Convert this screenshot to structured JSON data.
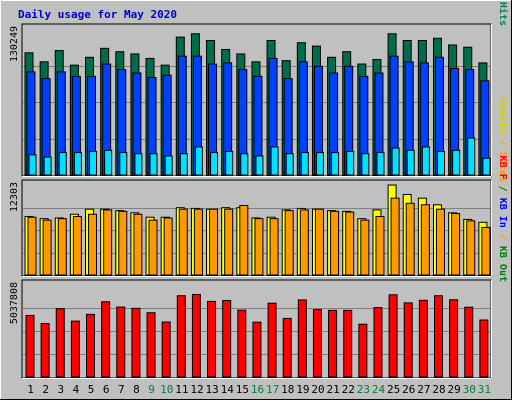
{
  "title": "Daily usage for May 2020",
  "colors": {
    "background": "#c0c0c0",
    "hits": "#006c4c",
    "files": "#0040ff",
    "pages": "#00e0ff",
    "visits": "#ffff00",
    "sites": "#ff9900",
    "kbin": "#ff0000",
    "weekday_label": "#000000",
    "weekend_label": "#008040"
  },
  "chart_data": [
    {
      "type": "bar",
      "panel": "requests",
      "y_max_label": "130249",
      "side_labels": [
        {
          "text": "Pages",
          "color": "#00c0e0"
        },
        {
          "text": " / ",
          "color": "#0040ff"
        },
        {
          "text": "Files",
          "color": "#0040ff"
        },
        {
          "text": " / ",
          "color": "#0040ff"
        },
        {
          "text": "Hits",
          "color": "#008060"
        }
      ],
      "categories": [
        "1",
        "2",
        "3",
        "4",
        "5",
        "6",
        "7",
        "8",
        "9",
        "10",
        "11",
        "12",
        "13",
        "14",
        "15",
        "16",
        "17",
        "18",
        "19",
        "20",
        "21",
        "22",
        "23",
        "24",
        "25",
        "26",
        "27",
        "28",
        "29",
        "30",
        "31"
      ],
      "weekend_days": [
        "9",
        "10",
        "16",
        "17",
        "23",
        "24",
        "30",
        "31"
      ],
      "ylim": [
        0,
        130249
      ],
      "series": [
        {
          "name": "Hits",
          "values": [
            109000,
            101000,
            111000,
            98000,
            105000,
            113000,
            110000,
            108000,
            104000,
            98000,
            123000,
            126000,
            120000,
            112000,
            108000,
            101000,
            120000,
            102000,
            118000,
            115000,
            105000,
            110000,
            99000,
            103000,
            126000,
            120000,
            120000,
            122000,
            116000,
            114000,
            100000
          ]
        },
        {
          "name": "Files",
          "values": [
            92000,
            86000,
            92000,
            88000,
            88000,
            99000,
            94000,
            91000,
            87000,
            89000,
            106000,
            106000,
            99000,
            100000,
            94000,
            88000,
            104000,
            86000,
            101000,
            97000,
            91000,
            97000,
            88000,
            91000,
            106000,
            101000,
            100000,
            105000,
            95000,
            94000,
            84000
          ]
        },
        {
          "name": "Pages",
          "values": [
            18000,
            16000,
            20000,
            20000,
            21000,
            22000,
            20000,
            19000,
            19000,
            17000,
            19000,
            25000,
            20000,
            21000,
            19000,
            17000,
            25000,
            19000,
            20000,
            20000,
            20000,
            21000,
            19000,
            20000,
            24000,
            22000,
            25000,
            21000,
            22000,
            33000,
            15000
          ]
        }
      ]
    },
    {
      "type": "bar",
      "panel": "visitors",
      "y_max_label": "12303",
      "side_labels": [
        {
          "text": "Visits",
          "color": "#d0d000"
        },
        {
          "text": " / ",
          "color": "#ff9900"
        },
        {
          "text": "Sites",
          "color": "#ff9900"
        }
      ],
      "categories": [
        "1",
        "2",
        "3",
        "4",
        "5",
        "6",
        "7",
        "8",
        "9",
        "10",
        "11",
        "12",
        "13",
        "14",
        "15",
        "16",
        "17",
        "18",
        "19",
        "20",
        "21",
        "22",
        "23",
        "24",
        "25",
        "26",
        "27",
        "28",
        "29",
        "30",
        "31"
      ],
      "ylim": [
        0,
        12303
      ],
      "series": [
        {
          "name": "Visits",
          "values": [
            8000,
            7700,
            7800,
            8300,
            9000,
            9000,
            8800,
            8500,
            7900,
            7900,
            9200,
            9100,
            9000,
            9200,
            9200,
            7800,
            7900,
            8900,
            9100,
            9000,
            8800,
            8700,
            7700,
            8900,
            12300,
            11000,
            10500,
            9600,
            8500,
            7600,
            7200
          ]
        },
        {
          "name": "Sites",
          "values": [
            7900,
            7500,
            7700,
            8000,
            8300,
            8900,
            8700,
            8300,
            7500,
            7800,
            9000,
            9000,
            9000,
            9000,
            9500,
            7700,
            7700,
            8800,
            8900,
            9000,
            8700,
            8600,
            7500,
            8000,
            10500,
            9800,
            9600,
            9000,
            8400,
            7400,
            6500
          ]
        }
      ]
    },
    {
      "type": "bar",
      "panel": "kbytes",
      "y_max_label": "5037808",
      "side_labels": [
        {
          "text": "KB F",
          "color": "#ff0000"
        },
        {
          "text": " / ",
          "color": "#008000"
        },
        {
          "text": "KB In",
          "color": "#0000ff"
        },
        {
          "text": " / ",
          "color": "#ff9900"
        },
        {
          "text": "KB Out",
          "color": "#008000"
        }
      ],
      "categories": [
        "1",
        "2",
        "3",
        "4",
        "5",
        "6",
        "7",
        "8",
        "9",
        "10",
        "11",
        "12",
        "13",
        "14",
        "15",
        "16",
        "17",
        "18",
        "19",
        "20",
        "21",
        "22",
        "23",
        "24",
        "25",
        "26",
        "27",
        "28",
        "29",
        "30",
        "31"
      ],
      "ylim": [
        0,
        5037808
      ],
      "series": [
        {
          "name": "KB F",
          "values": [
            3370000,
            2930000,
            3740000,
            3060000,
            3430000,
            4120000,
            3830000,
            3760000,
            3520000,
            3010000,
            4450000,
            4520000,
            4140000,
            4190000,
            3660000,
            3000000,
            4040000,
            3210000,
            4220000,
            3690000,
            3650000,
            3650000,
            2890000,
            3800000,
            4500000,
            4060000,
            4200000,
            4450000,
            4230000,
            3820000,
            3120000
          ]
        }
      ]
    }
  ]
}
